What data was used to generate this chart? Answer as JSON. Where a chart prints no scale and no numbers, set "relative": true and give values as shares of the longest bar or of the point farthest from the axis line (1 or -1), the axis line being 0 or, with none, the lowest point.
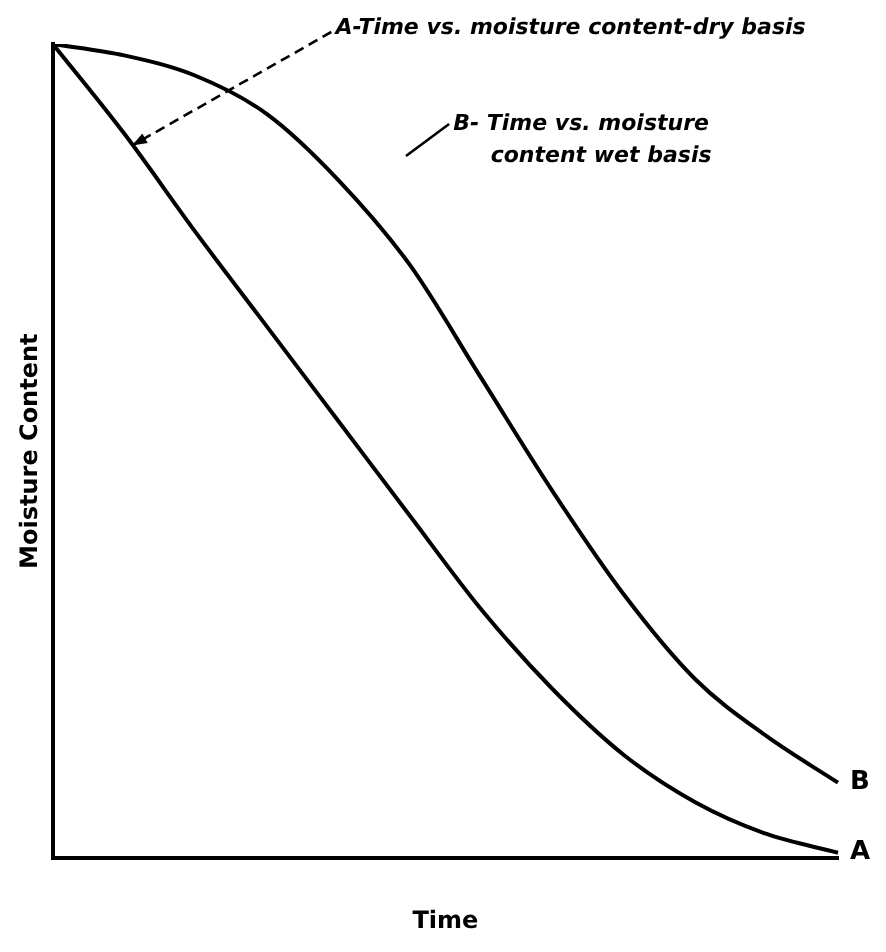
{
  "chart_data": {
    "type": "line",
    "relative": true,
    "xlabel": "Time",
    "ylabel": "Moisture Content",
    "categories": [
      null,
      null,
      null,
      null,
      null,
      null,
      null,
      null,
      null,
      null,
      null,
      null
    ],
    "series": [
      {
        "name": "A",
        "color": "#000000",
        "values": [
          1,
          0.89,
          0.769,
          0.653,
          0.537,
          0.421,
          0.306,
          0.208,
          0.127,
          0.069,
          0.03,
          0.007
        ]
      },
      {
        "name": "B",
        "color": "#000000",
        "values": [
          1,
          0.986,
          0.961,
          0.914,
          0.833,
          0.729,
          0.59,
          0.451,
          0.324,
          0.22,
          0.15,
          0.093
        ]
      }
    ],
    "annotations": [
      "A-Time vs. moisture content-dry basis",
      "B- Time vs. moisture content wet basis"
    ],
    "legend": false,
    "grid": false,
    "marker": "none",
    "line_style": "solid"
  }
}
